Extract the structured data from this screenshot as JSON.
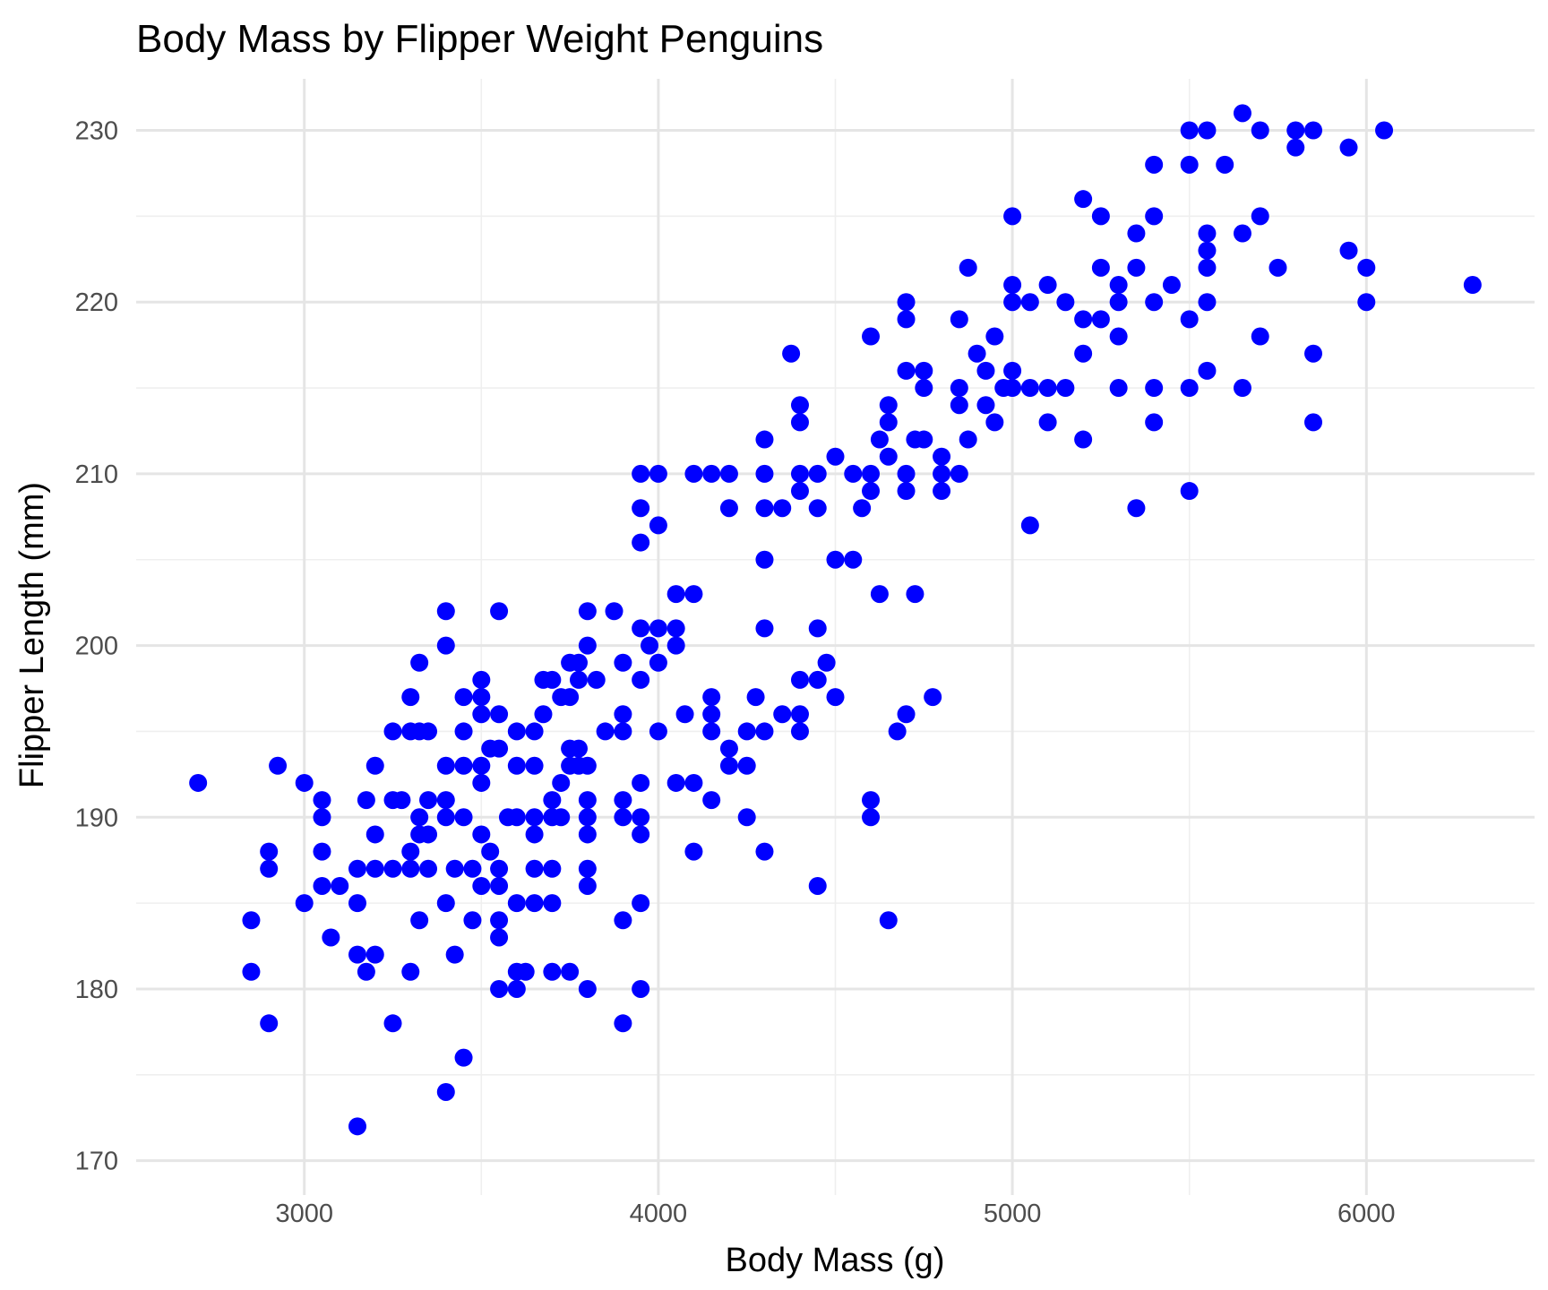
{
  "chart_data": {
    "type": "scatter",
    "title": "Body Mass by Flipper Weight Penguins",
    "xlabel": "Body Mass (g)",
    "ylabel": "Flipper Length (mm)",
    "xlim": [
      2525,
      6475
    ],
    "ylim": [
      168,
      233
    ],
    "x_ticks": [
      3000,
      4000,
      5000,
      6000
    ],
    "y_ticks": [
      170,
      180,
      190,
      200,
      210,
      220,
      230
    ],
    "x_tick_labels": [
      "3000",
      "4000",
      "5000",
      "6000"
    ],
    "y_tick_labels": [
      "170",
      "180",
      "190",
      "200",
      "210",
      "220",
      "230"
    ],
    "grid": true,
    "point_color": "#0000ff",
    "points": [
      [
        2700,
        192
      ],
      [
        2850,
        184
      ],
      [
        2850,
        181
      ],
      [
        2900,
        188
      ],
      [
        2900,
        187
      ],
      [
        2900,
        178
      ],
      [
        2925,
        193
      ],
      [
        3000,
        192
      ],
      [
        3000,
        185
      ],
      [
        3050,
        191
      ],
      [
        3050,
        190
      ],
      [
        3050,
        188
      ],
      [
        3050,
        186
      ],
      [
        3075,
        183
      ],
      [
        3100,
        186
      ],
      [
        3150,
        187
      ],
      [
        3150,
        185
      ],
      [
        3150,
        182
      ],
      [
        3150,
        172
      ],
      [
        3175,
        191
      ],
      [
        3175,
        181
      ],
      [
        3200,
        193
      ],
      [
        3200,
        189
      ],
      [
        3200,
        187
      ],
      [
        3200,
        182
      ],
      [
        3250,
        195
      ],
      [
        3250,
        191
      ],
      [
        3250,
        187
      ],
      [
        3250,
        178
      ],
      [
        3275,
        191
      ],
      [
        3300,
        197
      ],
      [
        3300,
        195
      ],
      [
        3300,
        188
      ],
      [
        3300,
        187
      ],
      [
        3300,
        181
      ],
      [
        3325,
        199
      ],
      [
        3325,
        195
      ],
      [
        3325,
        190
      ],
      [
        3325,
        189
      ],
      [
        3325,
        184
      ],
      [
        3350,
        195
      ],
      [
        3350,
        191
      ],
      [
        3350,
        189
      ],
      [
        3350,
        187
      ],
      [
        3400,
        202
      ],
      [
        3400,
        200
      ],
      [
        3400,
        193
      ],
      [
        3400,
        191
      ],
      [
        3400,
        190
      ],
      [
        3400,
        185
      ],
      [
        3400,
        174
      ],
      [
        3425,
        187
      ],
      [
        3425,
        182
      ],
      [
        3450,
        197
      ],
      [
        3450,
        195
      ],
      [
        3450,
        193
      ],
      [
        3450,
        190
      ],
      [
        3450,
        176
      ],
      [
        3475,
        187
      ],
      [
        3475,
        184
      ],
      [
        3500,
        198
      ],
      [
        3500,
        197
      ],
      [
        3500,
        196
      ],
      [
        3500,
        193
      ],
      [
        3500,
        192
      ],
      [
        3500,
        189
      ],
      [
        3500,
        186
      ],
      [
        3525,
        194
      ],
      [
        3525,
        188
      ],
      [
        3550,
        202
      ],
      [
        3550,
        196
      ],
      [
        3550,
        194
      ],
      [
        3550,
        187
      ],
      [
        3550,
        186
      ],
      [
        3550,
        184
      ],
      [
        3550,
        183
      ],
      [
        3550,
        180
      ],
      [
        3575,
        190
      ],
      [
        3600,
        195
      ],
      [
        3600,
        193
      ],
      [
        3600,
        190
      ],
      [
        3600,
        185
      ],
      [
        3600,
        181
      ],
      [
        3600,
        180
      ],
      [
        3625,
        181
      ],
      [
        3650,
        195
      ],
      [
        3650,
        193
      ],
      [
        3650,
        190
      ],
      [
        3650,
        189
      ],
      [
        3650,
        187
      ],
      [
        3650,
        185
      ],
      [
        3675,
        198
      ],
      [
        3675,
        196
      ],
      [
        3700,
        198
      ],
      [
        3700,
        191
      ],
      [
        3700,
        190
      ],
      [
        3700,
        187
      ],
      [
        3700,
        185
      ],
      [
        3700,
        181
      ],
      [
        3725,
        197
      ],
      [
        3725,
        192
      ],
      [
        3725,
        190
      ],
      [
        3750,
        199
      ],
      [
        3750,
        197
      ],
      [
        3750,
        194
      ],
      [
        3750,
        193
      ],
      [
        3750,
        181
      ],
      [
        3775,
        199
      ],
      [
        3775,
        198
      ],
      [
        3775,
        194
      ],
      [
        3775,
        193
      ],
      [
        3800,
        202
      ],
      [
        3800,
        200
      ],
      [
        3800,
        193
      ],
      [
        3800,
        191
      ],
      [
        3800,
        190
      ],
      [
        3800,
        189
      ],
      [
        3800,
        187
      ],
      [
        3800,
        186
      ],
      [
        3800,
        180
      ],
      [
        3825,
        198
      ],
      [
        3850,
        195
      ],
      [
        3875,
        202
      ],
      [
        3900,
        199
      ],
      [
        3900,
        196
      ],
      [
        3900,
        195
      ],
      [
        3900,
        191
      ],
      [
        3900,
        190
      ],
      [
        3900,
        184
      ],
      [
        3900,
        178
      ],
      [
        3950,
        210
      ],
      [
        3950,
        208
      ],
      [
        3950,
        206
      ],
      [
        3950,
        201
      ],
      [
        3950,
        198
      ],
      [
        3950,
        192
      ],
      [
        3950,
        190
      ],
      [
        3950,
        189
      ],
      [
        3950,
        185
      ],
      [
        3950,
        180
      ],
      [
        3975,
        200
      ],
      [
        4000,
        210
      ],
      [
        4000,
        207
      ],
      [
        4000,
        201
      ],
      [
        4000,
        199
      ],
      [
        4000,
        195
      ],
      [
        4050,
        203
      ],
      [
        4050,
        201
      ],
      [
        4050,
        200
      ],
      [
        4050,
        192
      ],
      [
        4075,
        196
      ],
      [
        4100,
        210
      ],
      [
        4100,
        203
      ],
      [
        4100,
        192
      ],
      [
        4100,
        188
      ],
      [
        4150,
        210
      ],
      [
        4150,
        197
      ],
      [
        4150,
        196
      ],
      [
        4150,
        195
      ],
      [
        4150,
        191
      ],
      [
        4200,
        210
      ],
      [
        4200,
        208
      ],
      [
        4200,
        194
      ],
      [
        4200,
        193
      ],
      [
        4250,
        195
      ],
      [
        4250,
        193
      ],
      [
        4250,
        190
      ],
      [
        4275,
        197
      ],
      [
        4300,
        212
      ],
      [
        4300,
        210
      ],
      [
        4300,
        208
      ],
      [
        4300,
        205
      ],
      [
        4300,
        201
      ],
      [
        4300,
        195
      ],
      [
        4300,
        188
      ],
      [
        4350,
        208
      ],
      [
        4350,
        196
      ],
      [
        4375,
        217
      ],
      [
        4400,
        214
      ],
      [
        4400,
        213
      ],
      [
        4400,
        210
      ],
      [
        4400,
        209
      ],
      [
        4400,
        198
      ],
      [
        4400,
        196
      ],
      [
        4400,
        195
      ],
      [
        4450,
        210
      ],
      [
        4450,
        208
      ],
      [
        4450,
        201
      ],
      [
        4450,
        198
      ],
      [
        4450,
        186
      ],
      [
        4475,
        199
      ],
      [
        4500,
        211
      ],
      [
        4500,
        205
      ],
      [
        4500,
        197
      ],
      [
        4550,
        210
      ],
      [
        4550,
        205
      ],
      [
        4575,
        208
      ],
      [
        4600,
        218
      ],
      [
        4600,
        210
      ],
      [
        4600,
        209
      ],
      [
        4600,
        191
      ],
      [
        4600,
        190
      ],
      [
        4625,
        212
      ],
      [
        4625,
        203
      ],
      [
        4650,
        214
      ],
      [
        4650,
        213
      ],
      [
        4650,
        211
      ],
      [
        4650,
        184
      ],
      [
        4675,
        195
      ],
      [
        4700,
        220
      ],
      [
        4700,
        219
      ],
      [
        4700,
        216
      ],
      [
        4700,
        210
      ],
      [
        4700,
        209
      ],
      [
        4700,
        196
      ],
      [
        4725,
        212
      ],
      [
        4725,
        203
      ],
      [
        4750,
        216
      ],
      [
        4750,
        215
      ],
      [
        4750,
        212
      ],
      [
        4775,
        197
      ],
      [
        4800,
        211
      ],
      [
        4800,
        210
      ],
      [
        4800,
        209
      ],
      [
        4850,
        219
      ],
      [
        4850,
        215
      ],
      [
        4850,
        214
      ],
      [
        4850,
        210
      ],
      [
        4875,
        222
      ],
      [
        4875,
        212
      ],
      [
        4900,
        217
      ],
      [
        4925,
        216
      ],
      [
        4925,
        214
      ],
      [
        4950,
        218
      ],
      [
        4950,
        213
      ],
      [
        4975,
        215
      ],
      [
        5000,
        225
      ],
      [
        5000,
        221
      ],
      [
        5000,
        220
      ],
      [
        5000,
        216
      ],
      [
        5000,
        215
      ],
      [
        5050,
        220
      ],
      [
        5050,
        215
      ],
      [
        5050,
        207
      ],
      [
        5100,
        221
      ],
      [
        5100,
        215
      ],
      [
        5100,
        213
      ],
      [
        5150,
        220
      ],
      [
        5150,
        215
      ],
      [
        5200,
        226
      ],
      [
        5200,
        219
      ],
      [
        5200,
        217
      ],
      [
        5200,
        212
      ],
      [
        5250,
        225
      ],
      [
        5250,
        222
      ],
      [
        5250,
        219
      ],
      [
        5300,
        221
      ],
      [
        5300,
        220
      ],
      [
        5300,
        218
      ],
      [
        5300,
        215
      ],
      [
        5350,
        224
      ],
      [
        5350,
        222
      ],
      [
        5350,
        208
      ],
      [
        5400,
        228
      ],
      [
        5400,
        225
      ],
      [
        5400,
        220
      ],
      [
        5400,
        215
      ],
      [
        5400,
        213
      ],
      [
        5450,
        221
      ],
      [
        5500,
        230
      ],
      [
        5500,
        228
      ],
      [
        5500,
        219
      ],
      [
        5500,
        215
      ],
      [
        5500,
        209
      ],
      [
        5550,
        230
      ],
      [
        5550,
        224
      ],
      [
        5550,
        223
      ],
      [
        5550,
        222
      ],
      [
        5550,
        220
      ],
      [
        5550,
        216
      ],
      [
        5600,
        228
      ],
      [
        5650,
        231
      ],
      [
        5650,
        224
      ],
      [
        5650,
        215
      ],
      [
        5700,
        230
      ],
      [
        5700,
        225
      ],
      [
        5700,
        218
      ],
      [
        5750,
        222
      ],
      [
        5800,
        230
      ],
      [
        5800,
        229
      ],
      [
        5850,
        230
      ],
      [
        5850,
        217
      ],
      [
        5850,
        213
      ],
      [
        5950,
        229
      ],
      [
        5950,
        223
      ],
      [
        6000,
        222
      ],
      [
        6000,
        220
      ],
      [
        6050,
        230
      ],
      [
        6300,
        221
      ]
    ]
  }
}
